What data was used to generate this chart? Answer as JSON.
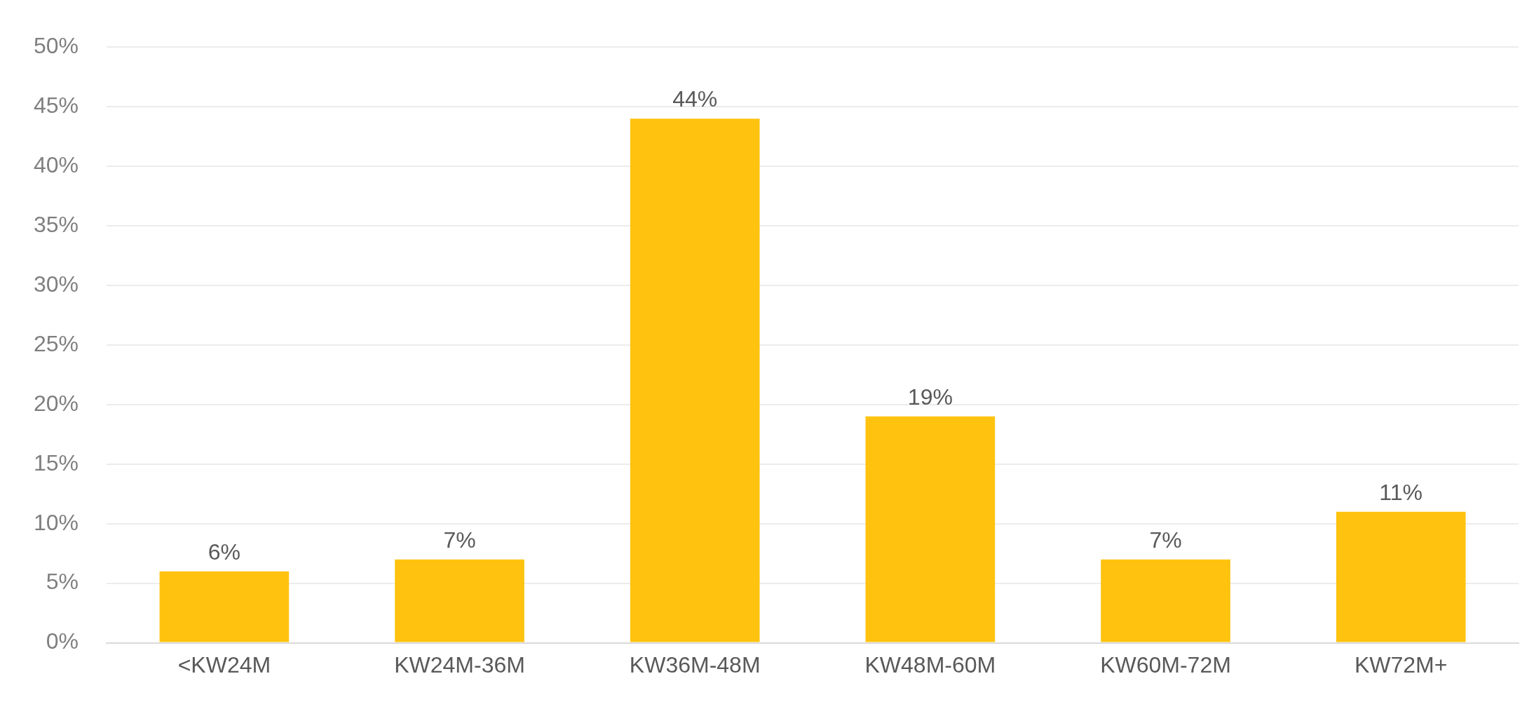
{
  "chart_data": {
    "type": "bar",
    "categories": [
      "<KW24M",
      "KW24M-36M",
      "KW36M-48M",
      "KW48M-60M",
      "KW60M-72M",
      "KW72M+"
    ],
    "values": [
      6,
      7,
      44,
      19,
      7,
      11
    ],
    "value_labels": [
      "6%",
      "7%",
      "44%",
      "19%",
      "7%",
      "11%"
    ],
    "color": "#ffc20e",
    "ylim": [
      0,
      50
    ],
    "yticks": [
      {
        "value": 0,
        "label": "0%"
      },
      {
        "value": 5,
        "label": "5%"
      },
      {
        "value": 10,
        "label": "10%"
      },
      {
        "value": 15,
        "label": "15%"
      },
      {
        "value": 20,
        "label": "20%"
      },
      {
        "value": 25,
        "label": "25%"
      },
      {
        "value": 30,
        "label": "30%"
      },
      {
        "value": 35,
        "label": "35%"
      },
      {
        "value": 40,
        "label": "40%"
      },
      {
        "value": 45,
        "label": "45%"
      },
      {
        "value": 50,
        "label": "50%"
      }
    ],
    "grid": "y",
    "legend": false
  }
}
